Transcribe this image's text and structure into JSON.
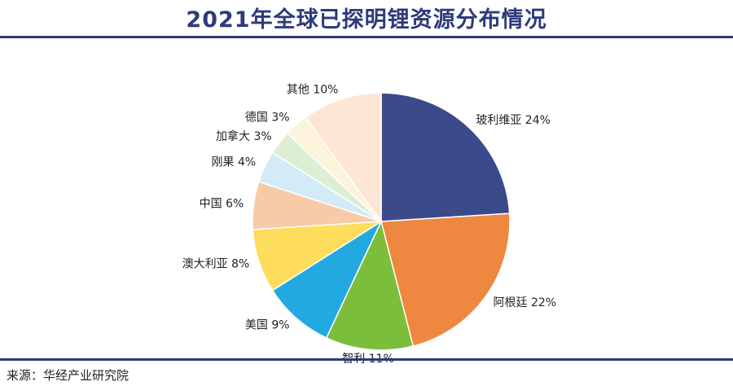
{
  "title": "2021年全球已探明锂资源分布情况",
  "source": "来源：华经产业研究院",
  "chart_data": {
    "type": "pie",
    "title": "2021年全球已探明锂资源分布情况",
    "start_angle_deg": 90,
    "direction": "clockwise",
    "slices": [
      {
        "name": "玻利维亚",
        "value": 24,
        "label": "玻利维亚 24%",
        "color": "#3b4a8a"
      },
      {
        "name": "阿根廷",
        "value": 22,
        "label": "阿根廷 22%",
        "color": "#ee8740"
      },
      {
        "name": "智利",
        "value": 11,
        "label": "智利 11%",
        "color": "#7cbd3c"
      },
      {
        "name": "美国",
        "value": 9,
        "label": "美国 9%",
        "color": "#22a9e0"
      },
      {
        "name": "澳大利亚",
        "value": 8,
        "label": "澳大利亚 8%",
        "color": "#fedc5c"
      },
      {
        "name": "中国",
        "value": 6,
        "label": "中国 6%",
        "color": "#f8cba6"
      },
      {
        "name": "刚果",
        "value": 4,
        "label": "刚果 4%",
        "color": "#d3eaf7"
      },
      {
        "name": "加拿大",
        "value": 3,
        "label": "加拿大 3%",
        "color": "#dcefd5"
      },
      {
        "name": "德国",
        "value": 3,
        "label": "德国 3%",
        "color": "#fbf3da"
      },
      {
        "name": "其他",
        "value": 10,
        "label": "其他 10%",
        "color": "#fde6d4"
      }
    ]
  }
}
